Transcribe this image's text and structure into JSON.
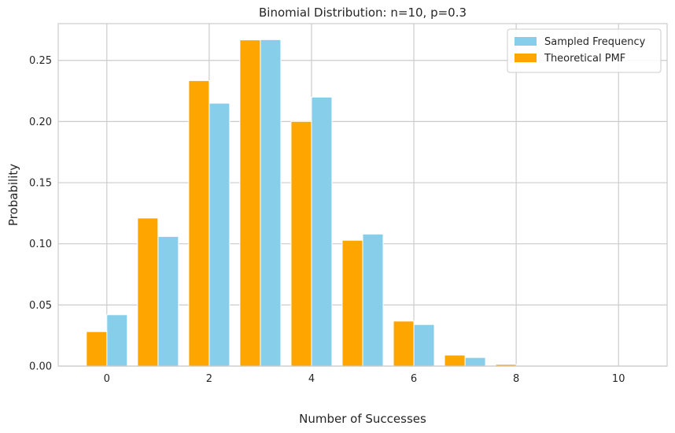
{
  "chart_data": {
    "type": "bar",
    "title": "Binomial Distribution: n=10, p=0.3",
    "xlabel": "Number of Successes",
    "ylabel": "Probability",
    "xlim": [
      -0.95,
      10.95
    ],
    "ylim": [
      0,
      0.2801
    ],
    "x": [
      0,
      1,
      2,
      3,
      4,
      5,
      6,
      7,
      8,
      9,
      10
    ],
    "xticks": [
      0,
      2,
      4,
      6,
      8,
      10
    ],
    "xtick_labels": [
      "0",
      "2",
      "4",
      "6",
      "8",
      "10"
    ],
    "yticks": [
      0,
      0.05,
      0.1,
      0.15,
      0.2,
      0.25
    ],
    "ytick_labels": [
      "0.00",
      "0.05",
      "0.10",
      "0.15",
      "0.20",
      "0.25"
    ],
    "grid": true,
    "legend_position": "top-right",
    "series": [
      {
        "name": "Sampled Frequency",
        "color": "#87ceeb",
        "offset": 0.2,
        "values": [
          0.042,
          0.106,
          0.215,
          0.267,
          0.22,
          0.108,
          0.034,
          0.007,
          0.0,
          0.0,
          0.0
        ]
      },
      {
        "name": "Theoretical PMF",
        "color": "#ffa500",
        "offset": -0.2,
        "values": [
          0.0282,
          0.1211,
          0.2335,
          0.2668,
          0.2001,
          0.1029,
          0.0368,
          0.009,
          0.0014,
          0.0001,
          0.0
        ]
      }
    ]
  }
}
